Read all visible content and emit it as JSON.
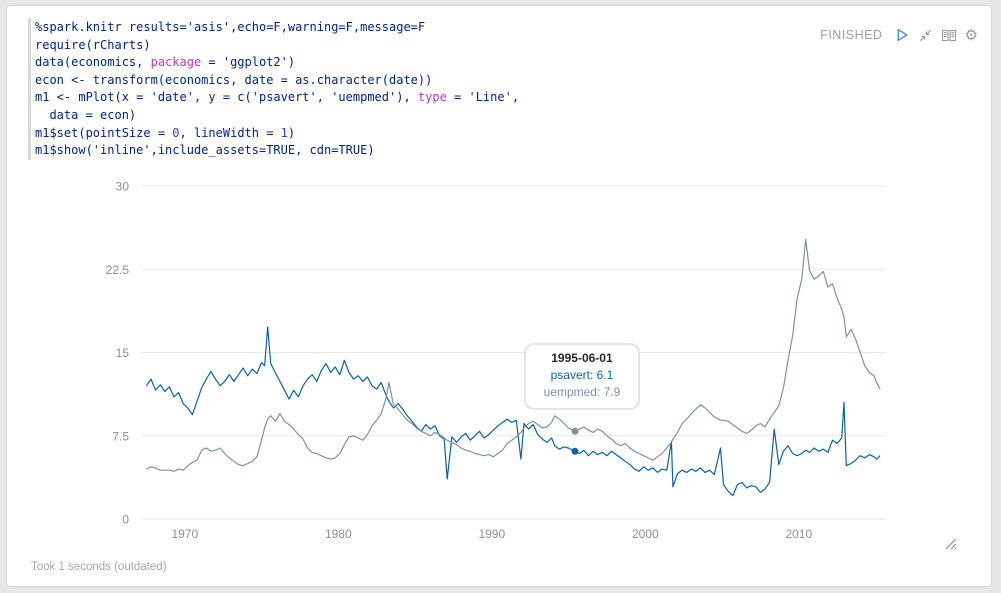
{
  "paragraph": {
    "status": "FINISHED",
    "controls": {
      "gear_glyph": "⚙"
    },
    "code": {
      "lines": [
        [
          {
            "t": "%spark.knitr results='asis',echo=F,warning=F,message=F",
            "c": "d"
          }
        ],
        [
          {
            "t": "require(rCharts)",
            "c": "d"
          }
        ],
        [
          {
            "t": "data(economics, ",
            "c": "d"
          },
          {
            "t": "package",
            "c": "k"
          },
          {
            "t": " = 'ggplot2')",
            "c": "d"
          }
        ],
        [
          {
            "t": "econ <- transform(economics, date = as.character(date))",
            "c": "d"
          }
        ],
        [
          {
            "t": "m1 <- mPlot(x = 'date', y = c('psavert', 'uempmed'), ",
            "c": "d"
          },
          {
            "t": "type",
            "c": "k"
          },
          {
            "t": " = 'Line',",
            "c": "d"
          }
        ],
        [
          {
            "t": "  data = econ)",
            "c": "d"
          }
        ],
        [
          {
            "t": "m1$set(pointSize = ",
            "c": "d"
          },
          {
            "t": "0",
            "c": "n"
          },
          {
            "t": ", lineWidth = ",
            "c": "d"
          },
          {
            "t": "1",
            "c": "n"
          },
          {
            "t": ")",
            "c": "d"
          }
        ],
        [
          {
            "t": "m1$show('inline',include_assets=TRUE, cdn=TRUE)",
            "c": "d"
          }
        ]
      ]
    },
    "footer": "Took 1 seconds (outdated)"
  },
  "tooltip": {
    "title": "1995-06-01",
    "rows": [
      {
        "label": "psavert",
        "value": "6.1",
        "color": "#0b62a4"
      },
      {
        "label": "uempmed",
        "value": "7.9",
        "color": "#7a92a3"
      }
    ]
  },
  "chart_data": {
    "type": "line",
    "title": "",
    "xlabel": "",
    "ylabel": "",
    "grid": true,
    "legend_position": "none",
    "x_axis": {
      "ticks": [
        1970,
        1980,
        1990,
        2000,
        2010
      ],
      "range": [
        1967.5,
        2015.4
      ],
      "unit": "year"
    },
    "y_axis": {
      "ticks": [
        0,
        7.5,
        15,
        22.5,
        30
      ],
      "range": [
        0,
        30
      ]
    },
    "series": [
      {
        "name": "psavert",
        "color": "#0b62a4"
      },
      {
        "name": "uempmed",
        "color": "#7a92a3"
      }
    ],
    "hover_point": {
      "x": 1995.42,
      "date": "1995-06-01",
      "psavert": 6.1,
      "uempmed": 7.9
    },
    "points": [
      [
        1967.5,
        12.0,
        4.5
      ],
      [
        1967.8,
        12.6,
        4.7
      ],
      [
        1968.1,
        11.6,
        4.6
      ],
      [
        1968.4,
        12.1,
        4.4
      ],
      [
        1968.7,
        11.5,
        4.4
      ],
      [
        1969.0,
        11.9,
        4.4
      ],
      [
        1969.3,
        11.0,
        4.3
      ],
      [
        1969.6,
        11.4,
        4.5
      ],
      [
        1969.9,
        10.4,
        4.4
      ],
      [
        1970.2,
        10.0,
        4.8
      ],
      [
        1970.5,
        9.4,
        5.1
      ],
      [
        1970.8,
        10.6,
        5.3
      ],
      [
        1971.1,
        11.8,
        6.2
      ],
      [
        1971.4,
        12.6,
        6.4
      ],
      [
        1971.7,
        13.3,
        6.1
      ],
      [
        1972.0,
        12.6,
        6.2
      ],
      [
        1972.3,
        12.0,
        6.4
      ],
      [
        1972.6,
        12.4,
        5.9
      ],
      [
        1972.9,
        13.0,
        5.5
      ],
      [
        1973.2,
        12.4,
        5.2
      ],
      [
        1973.5,
        13.0,
        4.9
      ],
      [
        1973.8,
        13.6,
        4.8
      ],
      [
        1974.1,
        12.9,
        5.0
      ],
      [
        1974.4,
        13.5,
        5.2
      ],
      [
        1974.7,
        13.1,
        5.6
      ],
      [
        1975.0,
        14.1,
        7.1
      ],
      [
        1975.2,
        13.8,
        8.2
      ],
      [
        1975.4,
        17.3,
        9.0
      ],
      [
        1975.6,
        14.0,
        9.3
      ],
      [
        1975.9,
        13.2,
        8.8
      ],
      [
        1976.2,
        12.4,
        9.5
      ],
      [
        1976.5,
        11.6,
        8.8
      ],
      [
        1976.8,
        10.8,
        8.5
      ],
      [
        1977.1,
        11.6,
        8.1
      ],
      [
        1977.4,
        11.0,
        7.6
      ],
      [
        1977.7,
        12.0,
        7.2
      ],
      [
        1978.0,
        12.6,
        6.4
      ],
      [
        1978.3,
        13.0,
        6.0
      ],
      [
        1978.6,
        12.4,
        5.9
      ],
      [
        1978.9,
        13.4,
        5.7
      ],
      [
        1979.2,
        14.0,
        5.5
      ],
      [
        1979.5,
        13.2,
        5.4
      ],
      [
        1979.8,
        13.7,
        5.5
      ],
      [
        1980.1,
        13.0,
        5.9
      ],
      [
        1980.4,
        14.3,
        6.7
      ],
      [
        1980.7,
        13.2,
        7.4
      ],
      [
        1981.0,
        12.6,
        7.5
      ],
      [
        1981.3,
        12.9,
        7.3
      ],
      [
        1981.6,
        12.4,
        7.1
      ],
      [
        1981.9,
        12.8,
        7.6
      ],
      [
        1982.2,
        12.0,
        8.4
      ],
      [
        1982.5,
        11.7,
        8.9
      ],
      [
        1982.8,
        12.3,
        9.5
      ],
      [
        1983.1,
        11.2,
        10.8
      ],
      [
        1983.3,
        10.6,
        12.3
      ],
      [
        1983.6,
        10.0,
        10.3
      ],
      [
        1983.9,
        10.4,
        9.9
      ],
      [
        1984.2,
        9.9,
        9.4
      ],
      [
        1984.5,
        9.3,
        8.9
      ],
      [
        1984.8,
        8.8,
        8.6
      ],
      [
        1985.1,
        8.3,
        8.2
      ],
      [
        1985.4,
        7.9,
        7.9
      ],
      [
        1985.7,
        8.5,
        7.7
      ],
      [
        1986.0,
        8.1,
        7.5
      ],
      [
        1986.3,
        8.4,
        7.8
      ],
      [
        1986.6,
        7.5,
        7.6
      ],
      [
        1986.9,
        7.2,
        7.3
      ],
      [
        1987.1,
        3.6,
        7.1
      ],
      [
        1987.4,
        7.4,
        6.9
      ],
      [
        1987.7,
        6.9,
        6.7
      ],
      [
        1988.0,
        7.4,
        6.4
      ],
      [
        1988.3,
        7.7,
        6.2
      ],
      [
        1988.6,
        7.1,
        6.1
      ],
      [
        1988.9,
        7.5,
        5.9
      ],
      [
        1989.2,
        7.9,
        5.8
      ],
      [
        1989.5,
        7.3,
        5.7
      ],
      [
        1989.8,
        7.6,
        5.8
      ],
      [
        1990.1,
        8.0,
        5.6
      ],
      [
        1990.4,
        8.4,
        5.9
      ],
      [
        1990.7,
        8.7,
        6.2
      ],
      [
        1991.0,
        9.0,
        6.8
      ],
      [
        1991.3,
        8.7,
        7.1
      ],
      [
        1991.6,
        8.9,
        7.4
      ],
      [
        1991.9,
        5.4,
        7.8
      ],
      [
        1992.1,
        8.6,
        8.2
      ],
      [
        1992.4,
        8.1,
        8.6
      ],
      [
        1992.7,
        8.5,
        8.8
      ],
      [
        1993.0,
        7.6,
        8.5
      ],
      [
        1993.3,
        7.2,
        8.2
      ],
      [
        1993.6,
        6.9,
        8.3
      ],
      [
        1993.9,
        7.3,
        8.7
      ],
      [
        1994.1,
        6.6,
        9.3
      ],
      [
        1994.4,
        6.3,
        9.0
      ],
      [
        1994.7,
        6.5,
        8.6
      ],
      [
        1995.0,
        6.4,
        8.2
      ],
      [
        1995.42,
        6.1,
        7.9
      ],
      [
        1995.7,
        5.9,
        8.1
      ],
      [
        1996.0,
        6.2,
        8.3
      ],
      [
        1996.3,
        5.7,
        8.0
      ],
      [
        1996.6,
        6.1,
        7.8
      ],
      [
        1996.9,
        5.8,
        8.1
      ],
      [
        1997.2,
        6.0,
        7.9
      ],
      [
        1997.5,
        5.7,
        7.5
      ],
      [
        1997.8,
        6.1,
        7.2
      ],
      [
        1998.1,
        5.8,
        6.8
      ],
      [
        1998.4,
        5.5,
        6.6
      ],
      [
        1998.7,
        5.2,
        6.8
      ],
      [
        1999.0,
        4.9,
        6.4
      ],
      [
        1999.3,
        4.5,
        6.1
      ],
      [
        1999.6,
        4.3,
        5.9
      ],
      [
        1999.9,
        4.7,
        5.7
      ],
      [
        2000.2,
        4.4,
        5.5
      ],
      [
        2000.5,
        4.6,
        5.3
      ],
      [
        2000.8,
        4.2,
        5.6
      ],
      [
        2001.1,
        4.5,
        5.9
      ],
      [
        2001.4,
        4.4,
        6.4
      ],
      [
        2001.7,
        7.0,
        6.9
      ],
      [
        2001.8,
        2.9,
        7.2
      ],
      [
        2002.1,
        4.1,
        7.8
      ],
      [
        2002.4,
        4.4,
        8.6
      ],
      [
        2002.7,
        4.2,
        9.0
      ],
      [
        2003.0,
        4.5,
        9.5
      ],
      [
        2003.3,
        4.3,
        9.9
      ],
      [
        2003.6,
        4.6,
        10.3
      ],
      [
        2003.9,
        4.2,
        10.0
      ],
      [
        2004.2,
        4.4,
        9.6
      ],
      [
        2004.5,
        4.0,
        9.2
      ],
      [
        2004.9,
        6.4,
        8.9
      ],
      [
        2005.1,
        3.1,
        8.9
      ],
      [
        2005.4,
        2.5,
        8.8
      ],
      [
        2005.7,
        2.1,
        8.5
      ],
      [
        2006.0,
        3.1,
        8.2
      ],
      [
        2006.3,
        3.3,
        7.9
      ],
      [
        2006.6,
        2.8,
        7.7
      ],
      [
        2006.9,
        3.0,
        8.0
      ],
      [
        2007.2,
        2.9,
        8.4
      ],
      [
        2007.5,
        2.4,
        8.6
      ],
      [
        2007.8,
        2.7,
        8.3
      ],
      [
        2008.1,
        3.3,
        9.0
      ],
      [
        2008.4,
        8.1,
        9.6
      ],
      [
        2008.7,
        4.9,
        10.2
      ],
      [
        2009.0,
        6.1,
        11.8
      ],
      [
        2009.3,
        6.6,
        14.3
      ],
      [
        2009.6,
        5.9,
        16.5
      ],
      [
        2009.9,
        5.7,
        19.9
      ],
      [
        2010.2,
        5.9,
        21.6
      ],
      [
        2010.45,
        6.2,
        25.2
      ],
      [
        2010.7,
        6.0,
        22.4
      ],
      [
        2011.0,
        6.4,
        21.6
      ],
      [
        2011.3,
        6.1,
        21.9
      ],
      [
        2011.6,
        6.3,
        22.3
      ],
      [
        2011.9,
        6.0,
        20.9
      ],
      [
        2012.2,
        7.1,
        21.2
      ],
      [
        2012.5,
        6.8,
        19.9
      ],
      [
        2012.8,
        7.3,
        18.9
      ],
      [
        2012.95,
        10.5,
        18.2
      ],
      [
        2013.1,
        4.8,
        16.4
      ],
      [
        2013.4,
        5.0,
        17.1
      ],
      [
        2013.7,
        5.3,
        16.2
      ],
      [
        2014.0,
        5.7,
        15.0
      ],
      [
        2014.3,
        5.5,
        13.8
      ],
      [
        2014.6,
        5.8,
        13.2
      ],
      [
        2014.9,
        5.6,
        12.9
      ],
      [
        2015.1,
        5.4,
        12.2
      ],
      [
        2015.3,
        5.7,
        11.7
      ]
    ]
  }
}
